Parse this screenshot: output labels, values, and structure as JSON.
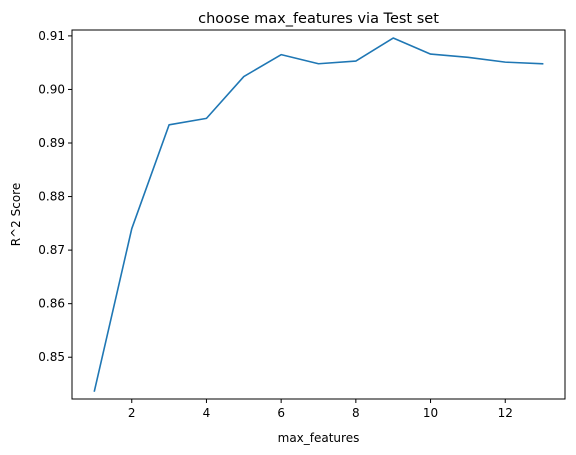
{
  "chart_data": {
    "type": "line",
    "title": "choose max_features via Test set",
    "xlabel": "max_features",
    "ylabel": "R^2 Score",
    "xlim": [
      0.4,
      13.6
    ],
    "ylim": [
      0.8422,
      0.9111
    ],
    "xticks": [
      2,
      4,
      6,
      8,
      10,
      12
    ],
    "xtick_labels": [
      "2",
      "4",
      "6",
      "8",
      "10",
      "12"
    ],
    "yticks": [
      0.85,
      0.86,
      0.87,
      0.88,
      0.89,
      0.9,
      0.91
    ],
    "ytick_labels": [
      "0.85",
      "0.86",
      "0.87",
      "0.88",
      "0.89",
      "0.90",
      "0.91"
    ],
    "grid": false,
    "series": [
      {
        "color": "#1f77b4",
        "x": [
          1,
          2,
          3,
          4,
          5,
          6,
          7,
          8,
          9,
          10,
          11,
          12,
          13
        ],
        "y": [
          0.8437,
          0.874,
          0.8934,
          0.8946,
          0.9024,
          0.9065,
          0.9048,
          0.9053,
          0.9096,
          0.9066,
          0.906,
          0.9051,
          0.9048
        ]
      }
    ]
  }
}
